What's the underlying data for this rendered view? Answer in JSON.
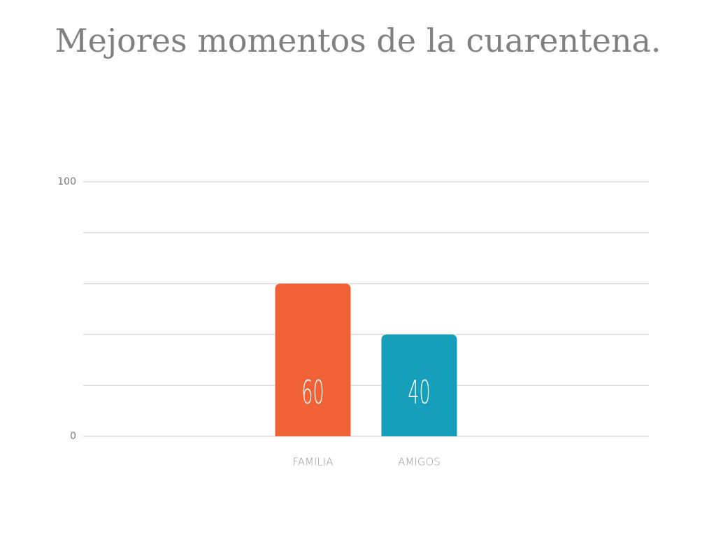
{
  "chart_data": {
    "type": "bar",
    "title": "Mejores momentos de la cuarentena.",
    "categories": [
      "FAMILIA",
      "AMIGOS"
    ],
    "values": [
      60,
      40
    ],
    "colors": [
      "#f06135",
      "#169fba"
    ],
    "ylim": [
      0,
      100
    ],
    "yticks": [
      0,
      100
    ],
    "ygrid": [
      0,
      20,
      40,
      60,
      80,
      100
    ],
    "grid": true
  }
}
